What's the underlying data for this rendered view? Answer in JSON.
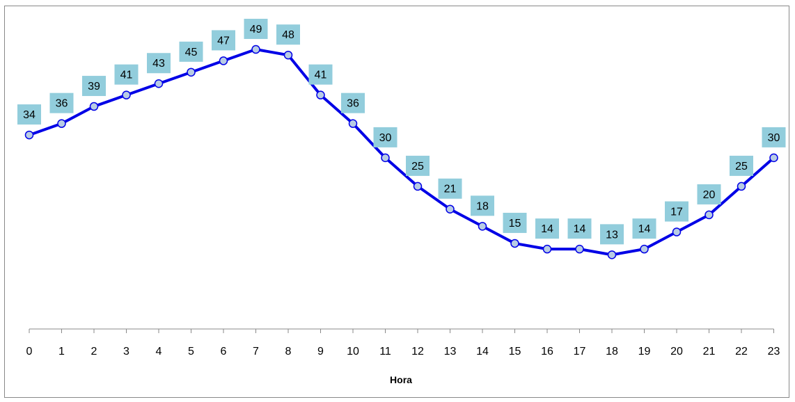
{
  "chart_data": {
    "type": "line",
    "title": "",
    "xlabel": "Hora",
    "ylabel": "",
    "x": [
      0,
      1,
      2,
      3,
      4,
      5,
      6,
      7,
      8,
      9,
      10,
      11,
      12,
      13,
      14,
      15,
      16,
      17,
      18,
      19,
      20,
      21,
      22,
      23
    ],
    "categories": [
      "0",
      "1",
      "2",
      "3",
      "4",
      "5",
      "6",
      "7",
      "8",
      "9",
      "10",
      "11",
      "12",
      "13",
      "14",
      "15",
      "16",
      "17",
      "18",
      "19",
      "20",
      "21",
      "22",
      "23"
    ],
    "series": [
      {
        "values": [
          34,
          36,
          39,
          41,
          43,
          45,
          47,
          49,
          48,
          41,
          36,
          30,
          25,
          21,
          18,
          15,
          14,
          14,
          13,
          14,
          17,
          20,
          25,
          30
        ]
      }
    ],
    "ylim": [
      0,
      54
    ],
    "grid": false,
    "legend": "none",
    "colors": {
      "line": "#0000e6",
      "marker_fill": "#b8cce4",
      "marker_stroke": "#0000e6",
      "label_box": "#92cddc",
      "axis": "#888888"
    }
  }
}
